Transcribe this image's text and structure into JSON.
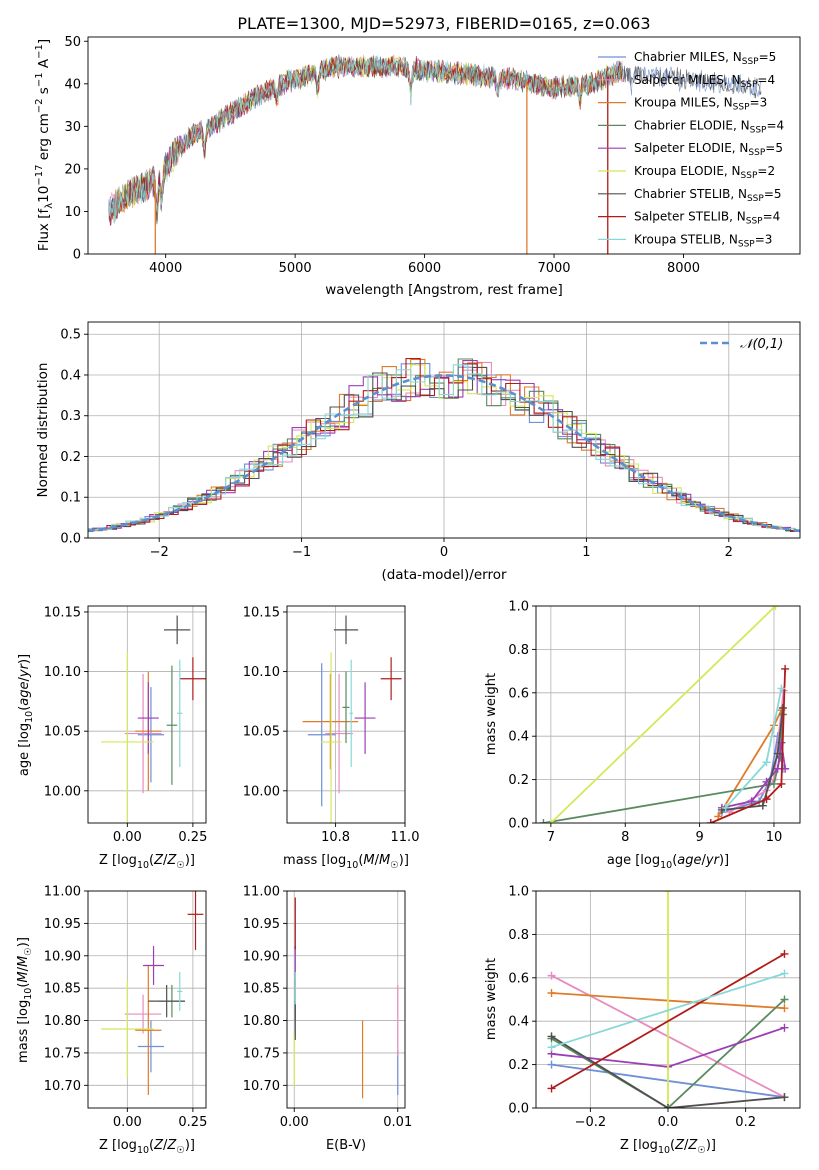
{
  "figure": {
    "title": "PLATE=1300, MJD=52973, FIBERID=0165, z=0.063"
  },
  "chart_data": [
    {
      "type": "line",
      "id": "spectrum",
      "title": "PLATE=1300, MJD=52973, FIBERID=0165, z=0.063",
      "xlabel": "wavelength [Angstrom, rest frame]",
      "ylabel": "Flux [f_λ 10^-17 erg cm^-2 s^-1 A^-1]",
      "xlim": [
        3400,
        8900
      ],
      "ylim": [
        0,
        51
      ],
      "xticks": [
        4000,
        5000,
        6000,
        7000,
        8000
      ],
      "yticks": [
        0,
        10,
        20,
        30,
        40,
        50
      ],
      "grid": false,
      "legend_placement": "upper right",
      "continuum_anchors": {
        "x": [
          3560,
          3700,
          3850,
          3950,
          4050,
          4200,
          4350,
          4500,
          4700,
          4900,
          5100,
          5300,
          5500,
          5800,
          6100,
          6400,
          6700,
          7000,
          7300,
          7500,
          7700,
          8000,
          8300,
          8600
        ],
        "y": [
          10,
          14,
          16,
          18,
          23,
          28,
          30,
          33,
          37,
          40,
          42,
          44,
          44,
          44,
          43,
          42,
          41,
          39,
          40,
          43,
          42,
          41,
          40,
          39
        ]
      },
      "features": [
        {
          "x": 3933,
          "depth": 8
        },
        {
          "x": 3968,
          "depth": 6
        },
        {
          "x": 4300,
          "depth": 5
        },
        {
          "x": 4861,
          "depth": 3
        },
        {
          "x": 5175,
          "depth": 4
        },
        {
          "x": 5893,
          "depth": 6
        },
        {
          "x": 6563,
          "depth": 3
        },
        {
          "x": 7200,
          "depth": 3
        },
        {
          "x": 7600,
          "depth": 3
        }
      ],
      "dropouts": [
        {
          "x": 3920,
          "series": "Kroupa MILES"
        },
        {
          "x": 6790,
          "series": "Kroupa MILES"
        },
        {
          "x": 7415,
          "series": "Salpeter STELIB"
        }
      ],
      "series": [
        {
          "name": "Chabrier MILES",
          "nssp": "5",
          "color": "#6f8fd6"
        },
        {
          "name": "Salpeter MILES",
          "nssp": "4",
          "color": "#e88bc0"
        },
        {
          "name": "Kroupa MILES",
          "nssp": "3",
          "color": "#e07b2a"
        },
        {
          "name": "Chabrier ELODIE",
          "nssp": "4",
          "color": "#5a8a5e"
        },
        {
          "name": "Salpeter ELODIE",
          "nssp": "5",
          "color": "#9b3fb5"
        },
        {
          "name": "Kroupa ELODIE",
          "nssp": "2",
          "color": "#d4e85a"
        },
        {
          "name": "Chabrier STELIB",
          "nssp": "5",
          "color": "#505050"
        },
        {
          "name": "Salpeter STELIB",
          "nssp": "4",
          "color": "#b01c1c"
        },
        {
          "name": "Kroupa STELIB",
          "nssp": "3",
          "color": "#88d8d8"
        }
      ]
    },
    {
      "type": "histogram",
      "id": "residuals",
      "xlabel": "(data-model)/error",
      "ylabel": "Normed distribution",
      "xlim": [
        -2.5,
        2.5
      ],
      "ylim": [
        0,
        0.53
      ],
      "xticks": [
        -2,
        -1,
        0,
        1,
        2
      ],
      "yticks": [
        0.0,
        0.1,
        0.2,
        0.3,
        0.4,
        0.5
      ],
      "grid": true,
      "legend": "𝒩(0,1)",
      "legend_placement": "upper right",
      "reference_curve": {
        "name": "𝒩(0,1)",
        "mean": 0,
        "sigma": 1,
        "color": "#5b8fd0",
        "style": "dashed"
      },
      "bin_width": 0.1
    },
    {
      "type": "scatter",
      "id": "age-vs-z",
      "xlabel": "Z [log10(Z/Z☉)]",
      "ylabel": "age  [log10(age/yr)]",
      "xlim": [
        -0.15,
        0.3
      ],
      "ylim": [
        9.973,
        10.155
      ],
      "xticks": [
        0.0,
        0.25
      ],
      "yticks": [
        10.0,
        10.05,
        10.1,
        10.15
      ],
      "grid": true,
      "points": [
        {
          "series": "Chabrier MILES",
          "x": 0.09,
          "y": 10.047,
          "xerr": 0.05,
          "yerr": 0.04
        },
        {
          "series": "Salpeter MILES",
          "x": 0.06,
          "y": 10.048,
          "xerr": 0.07,
          "yerr": 0.05
        },
        {
          "series": "Kroupa MILES",
          "x": 0.08,
          "y": 10.05,
          "xerr": 0.05,
          "yerr": 0.05
        },
        {
          "series": "Chabrier ELODIE",
          "x": 0.17,
          "y": 10.055,
          "xerr": 0.02,
          "yerr": 0.05
        },
        {
          "series": "Salpeter ELODIE",
          "x": 0.08,
          "y": 10.061,
          "xerr": 0.04,
          "yerr": 0.03
        },
        {
          "series": "Kroupa ELODIE",
          "x": 0.0,
          "y": 10.041,
          "xerr": 0.1,
          "yerr": 0.075
        },
        {
          "series": "Chabrier STELIB",
          "x": 0.19,
          "y": 10.135,
          "xerr": 0.05,
          "yerr": 0.012
        },
        {
          "series": "Salpeter STELIB",
          "x": 0.25,
          "y": 10.094,
          "xerr": 0.05,
          "yerr": 0.018
        },
        {
          "series": "Kroupa STELIB",
          "x": 0.2,
          "y": 10.065,
          "xerr": 0.01,
          "yerr": 0.045
        }
      ]
    },
    {
      "type": "scatter",
      "id": "age-vs-mass",
      "xlabel": "mass [log10(M/M☉)]",
      "ylabel": "",
      "xlim": [
        10.66,
        11.0
      ],
      "ylim": [
        9.973,
        10.155
      ],
      "xticks": [
        10.8,
        11.0
      ],
      "yticks": [
        10.0,
        10.05,
        10.1,
        10.15
      ],
      "grid": true,
      "points": [
        {
          "series": "Chabrier MILES",
          "x": 10.76,
          "y": 10.047,
          "xerr": 0.04,
          "yerr": 0.06
        },
        {
          "series": "Salpeter MILES",
          "x": 10.81,
          "y": 10.048,
          "xerr": 0.04,
          "yerr": 0.05
        },
        {
          "series": "Kroupa MILES",
          "x": 10.785,
          "y": 10.058,
          "xerr": 0.08,
          "yerr": 0.04
        },
        {
          "series": "Chabrier ELODIE",
          "x": 10.83,
          "y": 10.07,
          "xerr": 0.01,
          "yerr": 0.03
        },
        {
          "series": "Salpeter ELODIE",
          "x": 10.885,
          "y": 10.061,
          "xerr": 0.03,
          "yerr": 0.03
        },
        {
          "series": "Kroupa ELODIE",
          "x": 10.787,
          "y": 10.041,
          "xerr": 0.03,
          "yerr": 0.075
        },
        {
          "series": "Chabrier STELIB",
          "x": 10.83,
          "y": 10.135,
          "xerr": 0.035,
          "yerr": 0.012
        },
        {
          "series": "Salpeter STELIB",
          "x": 10.96,
          "y": 10.094,
          "xerr": 0.03,
          "yerr": 0.018
        },
        {
          "series": "Kroupa STELIB",
          "x": 10.845,
          "y": 10.065,
          "xerr": 0.005,
          "yerr": 0.045
        }
      ]
    },
    {
      "type": "line",
      "id": "massweight-vs-age",
      "xlabel": "age  [log10(age/yr)]",
      "ylabel": "mass weight",
      "xlim": [
        6.8,
        10.35
      ],
      "ylim": [
        0,
        1.0
      ],
      "xticks": [
        7,
        8,
        9,
        10
      ],
      "yticks": [
        0.0,
        0.2,
        0.4,
        0.6,
        0.8,
        1.0
      ],
      "grid": true,
      "series": [
        {
          "name": "Chabrier MILES",
          "x": [
            9.3,
            9.8,
            9.95,
            10.05,
            10.12
          ],
          "y": [
            0.05,
            0.1,
            0.2,
            0.4,
            0.25
          ]
        },
        {
          "name": "Salpeter MILES",
          "x": [
            9.4,
            9.9,
            10.0,
            10.13
          ],
          "y": [
            0.05,
            0.15,
            0.2,
            0.61
          ]
        },
        {
          "name": "Kroupa MILES",
          "x": [
            9.25,
            10.0,
            10.1
          ],
          "y": [
            0.03,
            0.45,
            0.52
          ]
        },
        {
          "name": "Chabrier ELODIE",
          "x": [
            6.9,
            10.0,
            10.08,
            10.12
          ],
          "y": [
            0.0,
            0.18,
            0.3,
            0.5
          ]
        },
        {
          "name": "Salpeter ELODIE",
          "x": [
            9.3,
            9.7,
            9.9,
            10.05,
            10.1,
            10.15
          ],
          "y": [
            0.07,
            0.1,
            0.19,
            0.25,
            0.37,
            0.25
          ]
        },
        {
          "name": "Kroupa ELODIE",
          "x": [
            7.0,
            10.02
          ],
          "y": [
            0.0,
            1.0
          ]
        },
        {
          "name": "Chabrier STELIB",
          "x": [
            9.3,
            9.85,
            10.05,
            10.12
          ],
          "y": [
            0.06,
            0.08,
            0.32,
            0.53
          ]
        },
        {
          "name": "Salpeter STELIB",
          "x": [
            9.15,
            9.9,
            10.1,
            10.15
          ],
          "y": [
            0.0,
            0.11,
            0.18,
            0.71
          ]
        },
        {
          "name": "Kroupa STELIB",
          "x": [
            9.35,
            9.9,
            10.1
          ],
          "y": [
            0.07,
            0.28,
            0.62
          ]
        }
      ]
    },
    {
      "type": "scatter",
      "id": "mass-vs-z",
      "xlabel": "Z [log10(Z/Z☉)]",
      "ylabel": "mass [log10(M/M☉)]",
      "xlim": [
        -0.15,
        0.3
      ],
      "ylim": [
        10.665,
        11.0
      ],
      "xticks": [
        0.0,
        0.25
      ],
      "yticks": [
        10.7,
        10.75,
        10.8,
        10.85,
        10.9,
        10.95,
        11.0
      ],
      "grid": true,
      "points": [
        {
          "series": "Chabrier MILES",
          "x": 0.09,
          "y": 10.76,
          "xerr": 0.05,
          "yerr": 0.04
        },
        {
          "series": "Salpeter MILES",
          "x": 0.06,
          "y": 10.81,
          "xerr": 0.07,
          "yerr": 0.03
        },
        {
          "series": "Kroupa MILES",
          "x": 0.08,
          "y": 10.785,
          "xerr": 0.05,
          "yerr": 0.1
        },
        {
          "series": "Chabrier ELODIE",
          "x": 0.17,
          "y": 10.83,
          "xerr": 0.05,
          "yerr": 0.025
        },
        {
          "series": "Salpeter ELODIE",
          "x": 0.1,
          "y": 10.885,
          "xerr": 0.04,
          "yerr": 0.03
        },
        {
          "series": "Kroupa ELODIE",
          "x": 0.0,
          "y": 10.787,
          "xerr": 0.1,
          "yerr": 0.075
        },
        {
          "series": "Chabrier STELIB",
          "x": 0.15,
          "y": 10.83,
          "xerr": 0.07,
          "yerr": 0.025
        },
        {
          "series": "Salpeter STELIB",
          "x": 0.26,
          "y": 10.964,
          "xerr": 0.03,
          "yerr": 0.055
        },
        {
          "series": "Kroupa STELIB",
          "x": 0.2,
          "y": 10.845,
          "xerr": 0.01,
          "yerr": 0.03
        }
      ]
    },
    {
      "type": "scatter",
      "id": "mass-vs-ebv",
      "xlabel": "E(B-V)",
      "ylabel": "",
      "xlim": [
        -0.0007,
        0.0107
      ],
      "ylim": [
        10.665,
        11.0
      ],
      "xticks": [
        0.0,
        0.01
      ],
      "yticks": [
        10.7,
        10.75,
        10.8,
        10.85,
        10.9,
        10.95,
        11.0
      ],
      "grid": true,
      "points": [
        {
          "series": "Chabrier MILES",
          "x": 0.01,
          "y": 10.72,
          "xerr": 0,
          "yerr": 0.035
        },
        {
          "series": "Salpeter MILES",
          "x": 0.01,
          "y": 10.8,
          "xerr": 0,
          "yerr": 0.055
        },
        {
          "series": "Kroupa MILES",
          "x": 0.0066,
          "y": 10.74,
          "xerr": 0,
          "yerr": 0.06
        },
        {
          "series": "Chabrier ELODIE",
          "x": 0.0001,
          "y": 10.83,
          "xerr": 0,
          "yerr": 0.03
        },
        {
          "series": "Salpeter ELODIE",
          "x": 0.0001,
          "y": 10.885,
          "xerr": 0,
          "yerr": 0.03
        },
        {
          "series": "Kroupa ELODIE",
          "x": 0.0,
          "y": 10.74,
          "xerr": 0,
          "yerr": 0.04
        },
        {
          "series": "Chabrier STELIB",
          "x": 0.0001,
          "y": 10.8,
          "xerr": 0,
          "yerr": 0.03
        },
        {
          "series": "Salpeter STELIB",
          "x": 0.0001,
          "y": 10.95,
          "xerr": 0,
          "yerr": 0.04
        },
        {
          "series": "Kroupa STELIB",
          "x": 0.0001,
          "y": 10.85,
          "xerr": 0,
          "yerr": 0.025
        }
      ]
    },
    {
      "type": "line",
      "id": "massweight-vs-z",
      "xlabel": "Z [log10(Z/Z☉)]",
      "ylabel": "mass weight",
      "xlim": [
        -0.34,
        0.34
      ],
      "ylim": [
        0,
        1.0
      ],
      "xticks": [
        -0.2,
        0.0,
        0.2
      ],
      "yticks": [
        0.0,
        0.2,
        0.4,
        0.6,
        0.8,
        1.0
      ],
      "grid": true,
      "series": [
        {
          "name": "Chabrier MILES",
          "x": [
            -0.3,
            0.3
          ],
          "y": [
            0.2,
            0.05
          ]
        },
        {
          "name": "Salpeter MILES",
          "x": [
            -0.3,
            0.3
          ],
          "y": [
            0.61,
            0.05
          ]
        },
        {
          "name": "Kroupa MILES",
          "x": [
            -0.3,
            0.3
          ],
          "y": [
            0.53,
            0.46
          ]
        },
        {
          "name": "Chabrier ELODIE",
          "x": [
            -0.3,
            0.0,
            0.3
          ],
          "y": [
            0.32,
            0.0,
            0.5
          ]
        },
        {
          "name": "Salpeter ELODIE",
          "x": [
            -0.3,
            0.0,
            0.3
          ],
          "y": [
            0.25,
            0.19,
            0.37
          ]
        },
        {
          "name": "Kroupa ELODIE",
          "x": [
            0.0,
            0.0
          ],
          "y": [
            0.0,
            1.0
          ]
        },
        {
          "name": "Chabrier STELIB",
          "x": [
            -0.3,
            0.0,
            0.3
          ],
          "y": [
            0.33,
            0.0,
            0.05
          ]
        },
        {
          "name": "Salpeter STELIB",
          "x": [
            -0.3,
            0.3
          ],
          "y": [
            0.09,
            0.71
          ]
        },
        {
          "name": "Kroupa STELIB",
          "x": [
            -0.3,
            0.3
          ],
          "y": [
            0.28,
            0.62
          ]
        }
      ]
    }
  ]
}
